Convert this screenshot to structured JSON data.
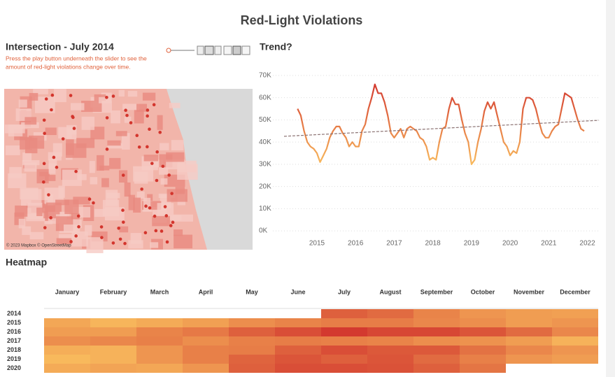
{
  "title": "Red-Light Violations",
  "map": {
    "title": "Intersection  - July 2014",
    "instructions": [
      "Press the play button underneath the slider to see the",
      "amount of red-light violations change over time."
    ],
    "attribution": "© 2023 Mapbox © OpenStreetMap"
  },
  "chart_data": [
    {
      "type": "line",
      "title": "Trend?",
      "x": [
        2014.5,
        2014.583,
        2014.667,
        2014.75,
        2014.833,
        2014.917,
        2015,
        2015.083,
        2015.167,
        2015.25,
        2015.333,
        2015.417,
        2015.5,
        2015.583,
        2015.667,
        2015.75,
        2015.833,
        2015.917,
        2016,
        2016.083,
        2016.167,
        2016.25,
        2016.333,
        2016.417,
        2016.5,
        2016.583,
        2016.667,
        2016.75,
        2016.833,
        2016.917,
        2017,
        2017.083,
        2017.167,
        2017.25,
        2017.333,
        2017.417,
        2017.5,
        2017.583,
        2017.667,
        2017.75,
        2017.833,
        2017.917,
        2018,
        2018.083,
        2018.167,
        2018.25,
        2018.333,
        2018.417,
        2018.5,
        2018.583,
        2018.667,
        2018.75,
        2018.833,
        2018.917,
        2019,
        2019.083,
        2019.167,
        2019.25,
        2019.333,
        2019.417,
        2019.5,
        2019.583,
        2019.667,
        2019.75,
        2019.833,
        2019.917,
        2020,
        2020.083,
        2020.167,
        2020.25,
        2020.333,
        2020.417,
        2020.5,
        2020.583,
        2020.667,
        2020.75,
        2020.833,
        2020.917,
        2021,
        2021.083,
        2021.167,
        2021.25,
        2021.333,
        2021.417,
        2021.5,
        2021.583,
        2021.667,
        2021.75,
        2021.833,
        2021.917
      ],
      "values": [
        55000,
        52000,
        45000,
        40000,
        38000,
        37000,
        35000,
        31000,
        34000,
        37000,
        42000,
        45000,
        47000,
        47000,
        44000,
        42000,
        38000,
        40000,
        38000,
        38000,
        45000,
        48000,
        55000,
        60000,
        66000,
        62000,
        62000,
        58000,
        52000,
        44000,
        42000,
        44000,
        46000,
        42000,
        46000,
        47000,
        46000,
        45000,
        42000,
        41000,
        38000,
        32000,
        33000,
        32000,
        40000,
        46000,
        47000,
        55000,
        60000,
        57000,
        57000,
        50000,
        44000,
        40000,
        30000,
        32000,
        40000,
        46000,
        54000,
        58000,
        55000,
        58000,
        52000,
        46000,
        40000,
        38000,
        34000,
        36000,
        35000,
        40000,
        55000,
        60000,
        60000,
        59000,
        55000,
        49000,
        44000,
        42000,
        42000,
        45000,
        47000,
        48000,
        55000,
        62000,
        61000,
        60000,
        55000,
        50000,
        46000,
        45000
      ],
      "trend": {
        "x": [
          2014.15,
          2022.3
        ],
        "values": [
          42600,
          49800
        ],
        "color": "#8c7373"
      },
      "xlim": [
        2013.86,
        2022.28
      ],
      "ylim": [
        -4700,
        72500
      ],
      "xticks": [
        2015,
        2016,
        2017,
        2018,
        2019,
        2020,
        2021,
        2022
      ],
      "yticks": [
        {
          "value": 0,
          "label": "0K"
        },
        {
          "value": 10000,
          "label": "10K"
        },
        {
          "value": 20000,
          "label": "20K"
        },
        {
          "value": 30000,
          "label": "30K"
        },
        {
          "value": 40000,
          "label": "40K"
        },
        {
          "value": 50000,
          "label": "50K"
        },
        {
          "value": 60000,
          "label": "60K"
        },
        {
          "value": 70000,
          "label": "70K"
        }
      ],
      "grid": true,
      "color_range": [
        "#f8b95c",
        "#d3392f"
      ]
    },
    {
      "type": "heatmap",
      "title": "Heatmap",
      "columns": [
        "January",
        "February",
        "March",
        "April",
        "May",
        "June",
        "July",
        "August",
        "September",
        "October",
        "November",
        "December"
      ],
      "rows": [
        "2014",
        "2015",
        "2016",
        "2017",
        "2018",
        "2019",
        "2020"
      ],
      "values": [
        [
          null,
          null,
          null,
          null,
          null,
          null,
          55000,
          52000,
          45000,
          40000,
          38000,
          37000
        ],
        [
          35000,
          31000,
          34000,
          37000,
          42000,
          45000,
          47000,
          47000,
          44000,
          42000,
          38000,
          40000
        ],
        [
          38000,
          38000,
          45000,
          48000,
          55000,
          60000,
          66000,
          62000,
          62000,
          58000,
          52000,
          44000
        ],
        [
          42000,
          44000,
          46000,
          42000,
          46000,
          47000,
          46000,
          45000,
          42000,
          41000,
          38000,
          32000
        ],
        [
          33000,
          32000,
          40000,
          46000,
          47000,
          55000,
          60000,
          57000,
          57000,
          50000,
          44000,
          40000
        ],
        [
          30000,
          32000,
          40000,
          46000,
          54000,
          58000,
          55000,
          58000,
          52000,
          46000,
          40000,
          38000
        ],
        [
          34000,
          36000,
          35000,
          40000,
          55000,
          60000,
          60000,
          59000,
          55000,
          49000,
          null,
          null
        ]
      ],
      "color_range": [
        "#f8b95c",
        "#d3392f"
      ]
    }
  ]
}
